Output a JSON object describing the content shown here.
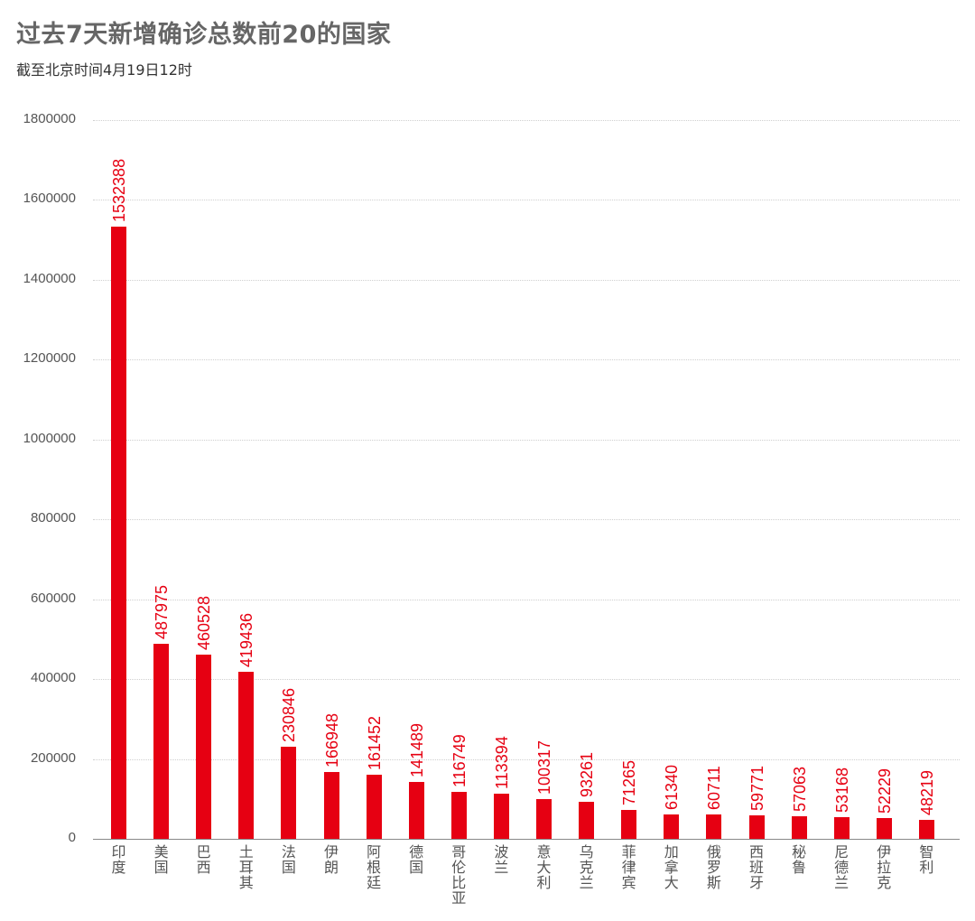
{
  "header": {
    "title": "过去7天新增确诊总数前20的国家",
    "subtitle": "截至北京时间4月19日12时"
  },
  "colors": {
    "bar": "#e60012",
    "value_label": "#e60012",
    "grid": "#cfcfcf",
    "axis_text": "#555555",
    "title": "#666666"
  },
  "chart_data": {
    "type": "bar",
    "title": "过去7天新增确诊总数前20的国家",
    "subtitle": "截至北京时间4月19日12时",
    "xlabel": "",
    "ylabel": "",
    "ylim": [
      0,
      1800000
    ],
    "yticks": [
      0,
      200000,
      400000,
      600000,
      800000,
      1000000,
      1200000,
      1400000,
      1600000,
      1800000
    ],
    "ytick_labels": [
      "0",
      "200000",
      "400000",
      "600000",
      "800000",
      "1000000",
      "1200000",
      "1400000",
      "1600000",
      "1800000"
    ],
    "grid": true,
    "legend": null,
    "categories": [
      "印度",
      "美国",
      "巴西",
      "土耳其",
      "法国",
      "伊朗",
      "阿根廷",
      "德国",
      "哥伦比亚",
      "波兰",
      "意大利",
      "乌克兰",
      "菲律宾",
      "加拿大",
      "俄罗斯",
      "西班牙",
      "秘鲁",
      "尼德兰",
      "伊拉克",
      "智利"
    ],
    "values": [
      1532388,
      487975,
      460528,
      419436,
      230846,
      166948,
      161452,
      141489,
      116749,
      113394,
      100317,
      93261,
      71265,
      61340,
      60711,
      59771,
      57063,
      53168,
      52229,
      48219
    ],
    "value_labels": [
      "1532388",
      "487975",
      "460528",
      "419436",
      "230846",
      "166948",
      "161452",
      "141489",
      "116749",
      "113394",
      "100317",
      "93261",
      "71265",
      "61340",
      "60711",
      "59771",
      "57063",
      "53168",
      "52229",
      "48219"
    ]
  }
}
